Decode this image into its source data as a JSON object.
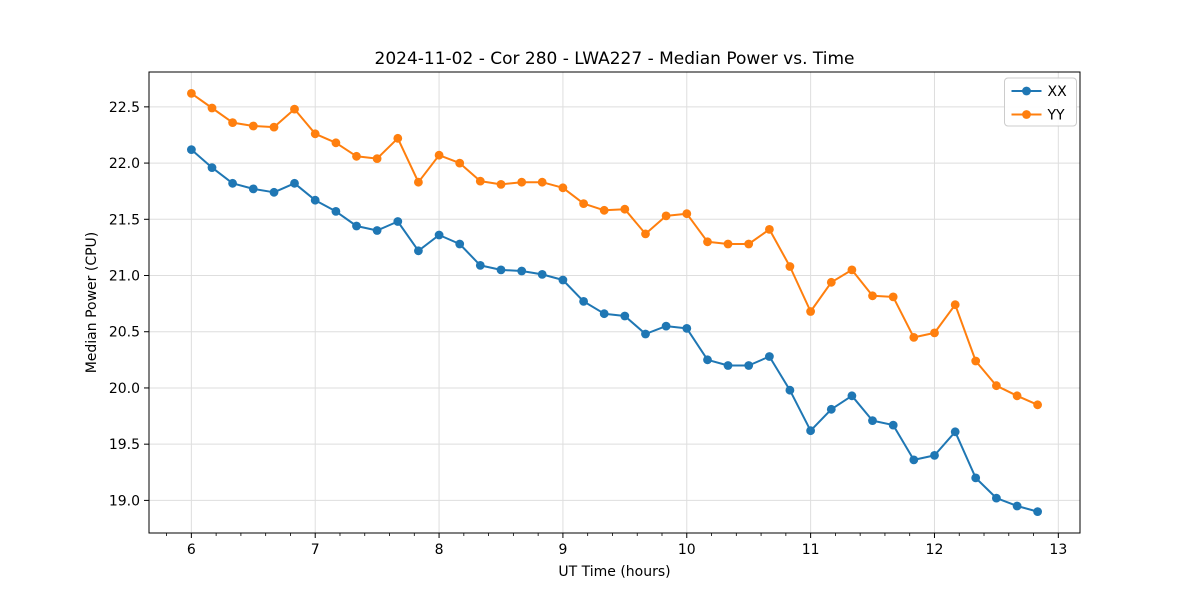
{
  "chart_data": {
    "type": "line",
    "title": "2024-11-02 - Cor 280 - LWA227 - Median Power vs. Time",
    "xlabel": "UT Time (hours)",
    "ylabel": "Median Power (CPU)",
    "xlim": [
      5.658,
      13.175
    ],
    "ylim": [
      18.71,
      22.81
    ],
    "xticks": [
      6,
      7,
      8,
      9,
      10,
      11,
      12,
      13
    ],
    "x_minor_tick_step": 0.2,
    "yticks": [
      19.0,
      19.5,
      20.0,
      20.5,
      21.0,
      21.5,
      22.0,
      22.5
    ],
    "grid": true,
    "legend": {
      "location": "upper-right",
      "labels": [
        "XX",
        "YY"
      ]
    },
    "x": [
      6.0,
      6.167,
      6.333,
      6.5,
      6.667,
      6.833,
      7.0,
      7.167,
      7.333,
      7.5,
      7.667,
      7.833,
      8.0,
      8.167,
      8.333,
      8.5,
      8.667,
      8.833,
      9.0,
      9.167,
      9.333,
      9.5,
      9.667,
      9.833,
      10.0,
      10.167,
      10.333,
      10.5,
      10.667,
      10.833,
      11.0,
      11.167,
      11.333,
      11.5,
      11.667,
      11.833,
      12.0,
      12.167,
      12.333,
      12.5,
      12.667,
      12.833
    ],
    "series": [
      {
        "name": "XX",
        "color": "#1f77b4",
        "values": [
          22.12,
          21.96,
          21.82,
          21.77,
          21.74,
          21.82,
          21.67,
          21.57,
          21.44,
          21.4,
          21.48,
          21.22,
          21.36,
          21.28,
          21.09,
          21.05,
          21.04,
          21.01,
          20.96,
          20.77,
          20.66,
          20.64,
          20.48,
          20.55,
          20.53,
          20.25,
          20.2,
          20.2,
          20.28,
          19.98,
          19.62,
          19.81,
          19.93,
          19.71,
          19.67,
          19.36,
          19.4,
          19.61,
          19.2,
          19.02,
          18.95,
          18.9
        ]
      },
      {
        "name": "YY",
        "color": "#ff7f0e",
        "values": [
          22.62,
          22.49,
          22.36,
          22.33,
          22.32,
          22.48,
          22.26,
          22.18,
          22.06,
          22.04,
          22.22,
          21.83,
          22.07,
          22.0,
          21.84,
          21.81,
          21.83,
          21.83,
          21.78,
          21.64,
          21.58,
          21.59,
          21.37,
          21.53,
          21.55,
          21.3,
          21.28,
          21.28,
          21.41,
          21.08,
          20.68,
          20.94,
          21.05,
          20.82,
          20.81,
          20.45,
          20.49,
          20.74,
          20.24,
          20.02,
          19.93,
          19.85
        ]
      }
    ],
    "colors": {
      "background": "#ffffff",
      "grid": "#dedede",
      "spine": "#000000",
      "text": "#000000",
      "legend_border": "#cccccc",
      "legend_fill": "#ffffff"
    }
  }
}
